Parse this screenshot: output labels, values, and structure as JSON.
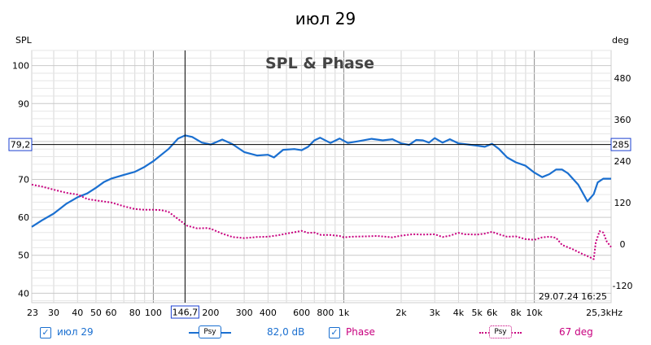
{
  "chart_data": {
    "type": "line",
    "title": "SPL & Phase",
    "top_title": "июл 29",
    "left_axis_label": "SPL",
    "right_axis_label": "deg",
    "timestamp": "29.07.24 16:25",
    "x_scale": "log",
    "xlim": [
      23,
      25300
    ],
    "ylim_left": [
      37.5,
      104
    ],
    "ylim_right": [
      -170,
      560
    ],
    "x_ticks": [
      {
        "v": 23,
        "t": "23"
      },
      {
        "v": 30,
        "t": "30"
      },
      {
        "v": 40,
        "t": "40"
      },
      {
        "v": 50,
        "t": "50"
      },
      {
        "v": 60,
        "t": "60"
      },
      {
        "v": 80,
        "t": "80"
      },
      {
        "v": 100,
        "t": "100"
      },
      {
        "v": 200,
        "t": "200"
      },
      {
        "v": 300,
        "t": "300"
      },
      {
        "v": 400,
        "t": "400"
      },
      {
        "v": 600,
        "t": "600"
      },
      {
        "v": 800,
        "t": "800"
      },
      {
        "v": 1000,
        "t": "1k"
      },
      {
        "v": 2000,
        "t": "2k"
      },
      {
        "v": 3000,
        "t": "3k"
      },
      {
        "v": 4000,
        "t": "4k"
      },
      {
        "v": 5000,
        "t": "5k"
      },
      {
        "v": 6000,
        "t": "6k"
      },
      {
        "v": 8000,
        "t": "8k"
      },
      {
        "v": 10000,
        "t": "10k"
      },
      {
        "v": 25300,
        "t": "25,3kHz"
      }
    ],
    "y_ticks_left": [
      40,
      50,
      60,
      70,
      80,
      90,
      100
    ],
    "y_ticks_right": [
      -120,
      0,
      120,
      240,
      360,
      480
    ],
    "cursor": {
      "x": 146.7,
      "x_label": "146,7",
      "y_left_label": "79,2",
      "y_right_label": "285"
    },
    "grid": true,
    "series": [
      {
        "name": "июл 29",
        "axis": "left",
        "color": "#1a6fd0",
        "style": "solid",
        "points": [
          [
            23,
            57.5
          ],
          [
            26,
            59.2
          ],
          [
            30,
            61
          ],
          [
            35,
            63.6
          ],
          [
            40,
            65.3
          ],
          [
            45,
            66.3
          ],
          [
            50,
            67.8
          ],
          [
            55,
            69.3
          ],
          [
            60,
            70.2
          ],
          [
            70,
            71.2
          ],
          [
            80,
            72
          ],
          [
            90,
            73.3
          ],
          [
            100,
            74.8
          ],
          [
            120,
            78
          ],
          [
            135,
            80.8
          ],
          [
            147,
            81.6
          ],
          [
            160,
            81.2
          ],
          [
            180,
            79.7
          ],
          [
            200,
            79.2
          ],
          [
            230,
            80.5
          ],
          [
            260,
            79.3
          ],
          [
            300,
            77.2
          ],
          [
            350,
            76.3
          ],
          [
            400,
            76.5
          ],
          [
            430,
            75.8
          ],
          [
            480,
            77.8
          ],
          [
            550,
            78
          ],
          [
            600,
            77.7
          ],
          [
            650,
            78.6
          ],
          [
            700,
            80.3
          ],
          [
            750,
            81
          ],
          [
            850,
            79.6
          ],
          [
            950,
            80.8
          ],
          [
            1050,
            79.6
          ],
          [
            1200,
            80.1
          ],
          [
            1400,
            80.7
          ],
          [
            1600,
            80.3
          ],
          [
            1800,
            80.6
          ],
          [
            2000,
            79.5
          ],
          [
            2200,
            79.1
          ],
          [
            2400,
            80.4
          ],
          [
            2600,
            80.3
          ],
          [
            2800,
            79.7
          ],
          [
            3000,
            80.9
          ],
          [
            3300,
            79.7
          ],
          [
            3600,
            80.6
          ],
          [
            4000,
            79.5
          ],
          [
            4500,
            79.2
          ],
          [
            5000,
            78.9
          ],
          [
            5500,
            78.6
          ],
          [
            6000,
            79.4
          ],
          [
            6500,
            78.1
          ],
          [
            7200,
            75.8
          ],
          [
            8000,
            74.5
          ],
          [
            9000,
            73.6
          ],
          [
            10000,
            71.8
          ],
          [
            11000,
            70.6
          ],
          [
            12000,
            71.4
          ],
          [
            13000,
            72.6
          ],
          [
            14000,
            72.6
          ],
          [
            15000,
            71.6
          ],
          [
            17000,
            68.6
          ],
          [
            19000,
            64.2
          ],
          [
            20500,
            66.1
          ],
          [
            21500,
            69.2
          ],
          [
            23000,
            70.2
          ],
          [
            25300,
            70.2
          ]
        ]
      },
      {
        "name": "Phase",
        "axis": "right",
        "color": "#c8007f",
        "style": "dotted",
        "points": [
          [
            23,
            172
          ],
          [
            26,
            166
          ],
          [
            30,
            157
          ],
          [
            35,
            148
          ],
          [
            40,
            143
          ],
          [
            45,
            130
          ],
          [
            50,
            126
          ],
          [
            60,
            120
          ],
          [
            70,
            109
          ],
          [
            80,
            101
          ],
          [
            90,
            99
          ],
          [
            100,
            99
          ],
          [
            110,
            98
          ],
          [
            120,
            93
          ],
          [
            135,
            72
          ],
          [
            150,
            53
          ],
          [
            170,
            45
          ],
          [
            190,
            46
          ],
          [
            200,
            44
          ],
          [
            230,
            30
          ],
          [
            260,
            20
          ],
          [
            300,
            17
          ],
          [
            350,
            20
          ],
          [
            400,
            21
          ],
          [
            450,
            25
          ],
          [
            500,
            30
          ],
          [
            550,
            34
          ],
          [
            600,
            38
          ],
          [
            650,
            32
          ],
          [
            700,
            33
          ],
          [
            760,
            26
          ],
          [
            850,
            26
          ],
          [
            950,
            23
          ],
          [
            1000,
            19
          ],
          [
            1100,
            21
          ],
          [
            1300,
            22
          ],
          [
            1500,
            23
          ],
          [
            1800,
            19
          ],
          [
            2000,
            24
          ],
          [
            2300,
            28
          ],
          [
            2600,
            27
          ],
          [
            3000,
            28
          ],
          [
            3300,
            20
          ],
          [
            3600,
            24
          ],
          [
            4000,
            32
          ],
          [
            4300,
            28
          ],
          [
            5000,
            27
          ],
          [
            5500,
            30
          ],
          [
            6000,
            35
          ],
          [
            6500,
            28
          ],
          [
            7200,
            21
          ],
          [
            8000,
            22
          ],
          [
            9000,
            14
          ],
          [
            10000,
            12
          ],
          [
            11000,
            19
          ],
          [
            12000,
            21
          ],
          [
            13000,
            18
          ],
          [
            14000,
            -3
          ],
          [
            16000,
            -16
          ],
          [
            18000,
            -30
          ],
          [
            19500,
            -38
          ],
          [
            20500,
            -44
          ],
          [
            21000,
            4
          ],
          [
            22000,
            37
          ],
          [
            23000,
            33
          ],
          [
            24000,
            7
          ],
          [
            25300,
            -9
          ]
        ]
      }
    ],
    "legend": {
      "series1_label": "июл 29",
      "series1_value": "82,0 dB",
      "series2_label": "Phase",
      "series2_value": "67 deg",
      "psy_label": "Psy"
    }
  }
}
